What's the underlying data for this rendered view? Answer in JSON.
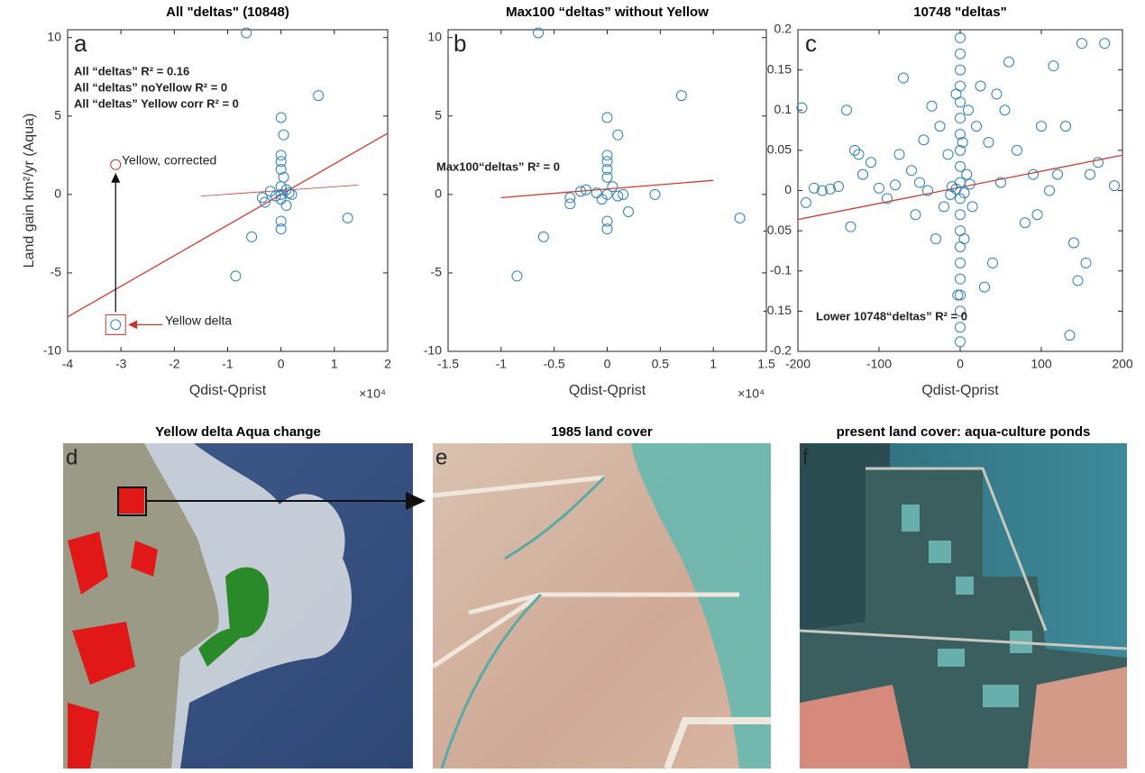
{
  "chart_data": [
    {
      "type": "scatter",
      "title": "All \"deltas\" (10848)",
      "xlabel": "Qdist-Qprist",
      "ylabel": "Land gain km²/yr (Aqua)",
      "x_scale_note": "×10⁴",
      "xlim": [
        -4,
        2
      ],
      "xticks": [
        -4,
        -3,
        -2,
        -1,
        0,
        1,
        2
      ],
      "ylim": [
        -10,
        10.5
      ],
      "yticks": [
        -10,
        -5,
        0,
        5,
        10
      ],
      "series": [
        {
          "color": "#2e7fb8",
          "x": [
            -3.1,
            -0.65,
            0.7,
            0,
            0.05,
            1.25,
            -0.85,
            -0.55,
            0,
            0,
            0,
            0,
            0,
            -0.3,
            0.2,
            0.1,
            -0.2,
            0.1,
            0,
            0,
            0,
            -0.1,
            0.05,
            -0.35,
            0.15
          ],
          "values": [
            -8.3,
            10.3,
            6.3,
            4.9,
            3.8,
            -1.5,
            -5.2,
            -2.7,
            2.5,
            2.1,
            1.6,
            -1.7,
            -2.2,
            -0.5,
            0,
            -0.7,
            0.2,
            0.3,
            0,
            0.5,
            -0.3,
            -0.1,
            1.1,
            -0.2,
            0.1
          ]
        },
        {
          "color": "#c0392b",
          "x": [
            -3.1
          ],
          "values": [
            1.9
          ]
        }
      ],
      "fits": [
        {
          "color": "#d03a2f",
          "x": [
            -4,
            2
          ],
          "y": [
            -7.8,
            3.9
          ]
        },
        {
          "color": "#d03a2f",
          "x": [
            -1.5,
            1.45
          ],
          "y": [
            -0.1,
            0.6
          ]
        }
      ],
      "annotations": [
        "a",
        "All “deltas” R² = 0.16",
        "All “deltas” noYellow R² = 0",
        "All “deltas” Yellow corr R² = 0",
        "Yellow, corrected",
        "Yellow delta"
      ]
    },
    {
      "type": "scatter",
      "title": "Max100 “deltas” without Yellow",
      "xlabel": "Qdist-Qprist",
      "x_scale_note": "×10⁴",
      "xlim": [
        -1.5,
        1.5
      ],
      "xticks": [
        -1.5,
        -1,
        -0.5,
        0,
        0.5,
        1,
        1.5
      ],
      "ylim": [
        -10,
        10.5
      ],
      "yticks": [
        -10,
        -5,
        0,
        5,
        10
      ],
      "series": [
        {
          "color": "#2e7fb8",
          "x": [
            -0.65,
            0.7,
            0,
            0.1,
            1.25,
            -0.85,
            -0.6,
            0,
            0,
            0,
            0,
            0,
            0,
            -0.35,
            -0.35,
            0.45,
            0.2,
            0.15,
            -0.2,
            0,
            0.05,
            -0.05,
            -0.1,
            0.1,
            -0.25
          ],
          "values": [
            10.3,
            6.3,
            4.9,
            3.8,
            -1.5,
            -5.2,
            -2.7,
            2.5,
            2.1,
            1.6,
            1.1,
            -1.7,
            -2.2,
            -0.6,
            -0.2,
            0,
            -1.1,
            0,
            0.3,
            0,
            0.5,
            -0.3,
            0.1,
            -0.1,
            0.2
          ]
        }
      ],
      "fits": [
        {
          "color": "#d03a2f",
          "x": [
            -1,
            1
          ],
          "y": [
            -0.2,
            0.9
          ]
        }
      ],
      "annotations": [
        "b",
        "Max100“deltas” R² = 0"
      ]
    },
    {
      "type": "scatter",
      "title": "10748 \"deltas\"",
      "xlabel": "Qdist-Qprist",
      "xlim": [
        -200,
        200
      ],
      "xticks": [
        -200,
        -100,
        0,
        100,
        200
      ],
      "ylim": [
        -0.2,
        0.2
      ],
      "yticks": [
        -0.2,
        -0.15,
        -0.1,
        -0.05,
        0,
        0.05,
        0.1,
        0.15,
        0.2
      ],
      "series": [
        {
          "color": "#2e7fb8",
          "x": [
            -195,
            -190,
            -180,
            -170,
            -160,
            -150,
            -140,
            -135,
            -130,
            -125,
            -120,
            -110,
            -100,
            -90,
            -80,
            -75,
            -70,
            -60,
            -55,
            -50,
            -45,
            -40,
            -35,
            -30,
            -25,
            -20,
            -15,
            -10,
            -5,
            -3,
            0,
            0,
            0,
            0,
            0,
            0,
            0,
            0,
            0,
            0,
            0,
            0,
            0,
            0,
            0,
            0,
            0,
            0,
            0,
            0,
            3,
            5,
            8,
            10,
            15,
            20,
            25,
            30,
            35,
            40,
            45,
            50,
            55,
            60,
            70,
            80,
            90,
            95,
            100,
            110,
            115,
            120,
            130,
            135,
            140,
            145,
            150,
            155,
            160,
            170,
            178,
            190,
            -5,
            5,
            12,
            -12
          ],
          "values": [
            0.103,
            -0.015,
            0.003,
            0,
            0.002,
            0.005,
            0.1,
            -0.045,
            0.05,
            0.045,
            0.02,
            0.035,
            0.003,
            -0.01,
            0.007,
            0.045,
            0.14,
            0.025,
            -0.03,
            0.01,
            0.063,
            0,
            0.105,
            -0.06,
            0.08,
            -0.02,
            0.045,
            0.005,
            0.12,
            -0.13,
            0.19,
            0.17,
            0.15,
            0.13,
            0.11,
            0.09,
            0.07,
            0.05,
            0.03,
            0.01,
            -0.01,
            -0.03,
            -0.05,
            -0.07,
            -0.09,
            -0.11,
            -0.13,
            -0.15,
            -0.17,
            -0.188,
            0.06,
            -0.06,
            0.02,
            0.1,
            -0.02,
            0.08,
            0.13,
            -0.12,
            0.06,
            -0.09,
            0.12,
            0.01,
            0.1,
            0.16,
            0.05,
            -0.04,
            0.02,
            -0.03,
            0.08,
            0,
            0.155,
            0.02,
            0.08,
            -0.18,
            -0.065,
            -0.112,
            0.183,
            -0.09,
            0.02,
            0.035,
            0.183,
            0.006,
            0.002,
            -0.003,
            0.008,
            -0.005
          ]
        }
      ],
      "fits": [
        {
          "color": "#d03a2f",
          "x": [
            -200,
            200
          ],
          "y": [
            -0.036,
            0.044
          ]
        }
      ],
      "annotations": [
        "c",
        "Lower 10748“deltas” R² = 0"
      ]
    }
  ],
  "images": [
    {
      "label": "d",
      "title": "Yellow delta Aqua change"
    },
    {
      "label": "e",
      "title": "1985 land cover"
    },
    {
      "label": "f",
      "title": "present land cover: aqua-culture ponds"
    }
  ]
}
